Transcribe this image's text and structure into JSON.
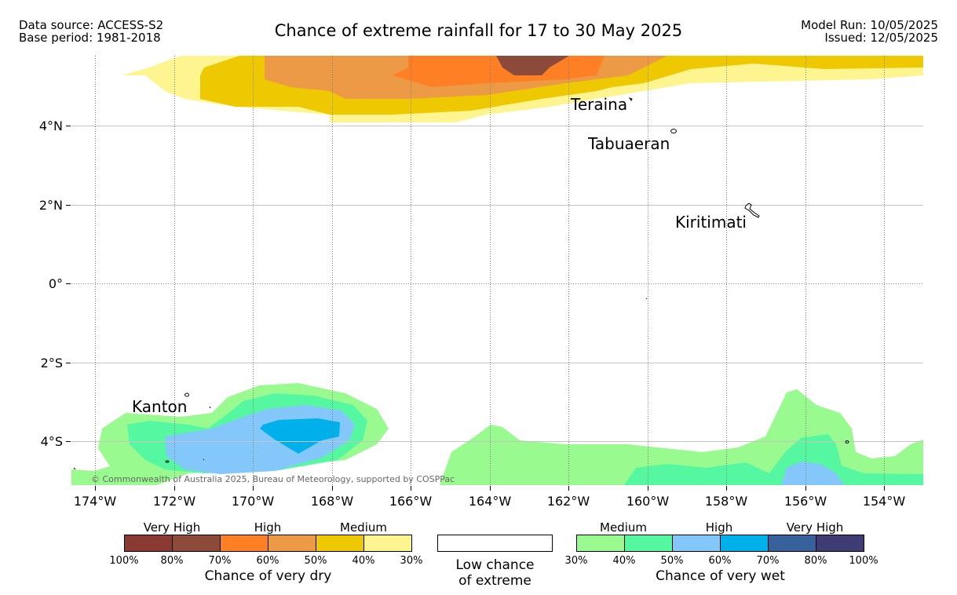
{
  "header": {
    "data_source": "Data source: ACCESS-S2",
    "base_period": "Base period: 1981-2018",
    "title": "Chance of extreme rainfall for 17 to 30 May 2025",
    "model_run": "Model Run: 10/05/2025",
    "issued": "Issued: 12/05/2025"
  },
  "map": {
    "lat_labels": [
      "4°N",
      "2°N",
      "0°",
      "2°S",
      "4°S"
    ],
    "lon_labels": [
      "174°W",
      "172°W",
      "170°W",
      "168°W",
      "166°W",
      "164°W",
      "162°W",
      "160°W",
      "158°W",
      "156°W",
      "154°W"
    ],
    "places": [
      "Teraina",
      "Tabuaeran",
      "Kiritimati",
      "Kanton"
    ],
    "copyright": "© Commonwealth of Australia 2025, Bureau of Meteorology, supported by COSPPac"
  },
  "legend": {
    "dry": {
      "categories": [
        "Very High",
        "High",
        "Medium"
      ],
      "percent_labels": [
        "100%",
        "80%",
        "70%",
        "60%",
        "50%",
        "40%",
        "30%"
      ],
      "colors": [
        "#8b3a33",
        "#8c4b3a",
        "#fe7f24",
        "#ec9a46",
        "#eec801",
        "#fff590"
      ],
      "title": "Chance of very dry"
    },
    "low": {
      "line1": "Low chance",
      "line2": "of extreme"
    },
    "wet": {
      "categories": [
        "Medium",
        "High",
        "Very High"
      ],
      "percent_labels": [
        "30%",
        "40%",
        "50%",
        "60%",
        "70%",
        "80%",
        "100%"
      ],
      "colors": [
        "#99fa8f",
        "#55f8a0",
        "#84c8fb",
        "#00b0eb",
        "#37619b",
        "#3e3b75"
      ],
      "title": "Chance of very wet"
    }
  }
}
